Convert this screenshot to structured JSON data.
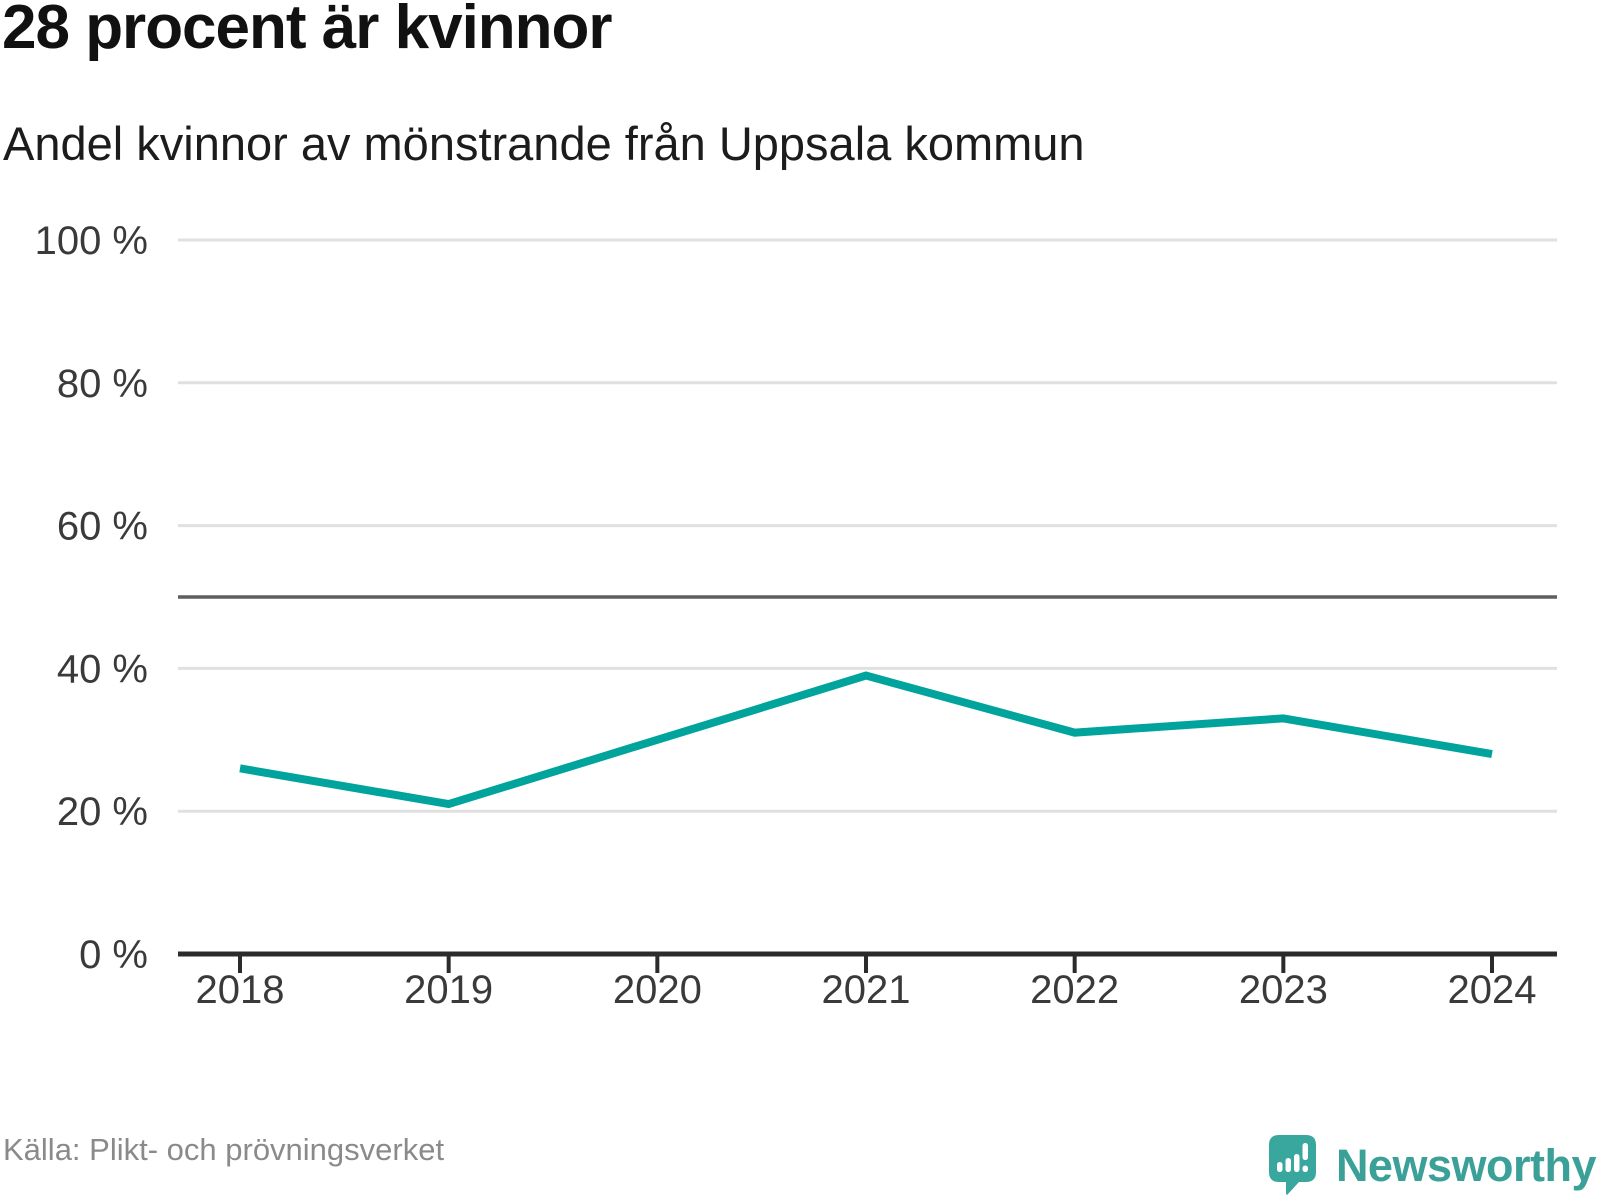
{
  "header": {
    "title": "28 procent är kvinnor",
    "subtitle": "Andel kvinnor av mönstrande från Uppsala kommun"
  },
  "footer": {
    "source": "Källa: Plikt- och prövningsverket",
    "brand": "Newsworthy"
  },
  "chart_data": {
    "type": "line",
    "x": [
      2018,
      2019,
      2020,
      2021,
      2022,
      2023,
      2024
    ],
    "series": [
      {
        "name": "Andel kvinnor av mönstrande",
        "values": [
          26,
          21,
          30,
          39,
          31,
          33,
          28
        ]
      }
    ],
    "unit": "%",
    "ylim": [
      0,
      100
    ],
    "y_ticks": [
      0,
      20,
      40,
      60,
      80,
      100
    ],
    "y_tick_suffix": " %",
    "reference_line": 50,
    "grid": true,
    "legend": "none",
    "colors": {
      "line": "#00a49c",
      "reference_line": "#5f5f5f",
      "gridline": "#e0e0e0",
      "axis": "#2b2b2b",
      "tick_label": "#3a3a3a",
      "brand_teal": "#3aa098",
      "source_gray": "#8a8a8a"
    }
  }
}
